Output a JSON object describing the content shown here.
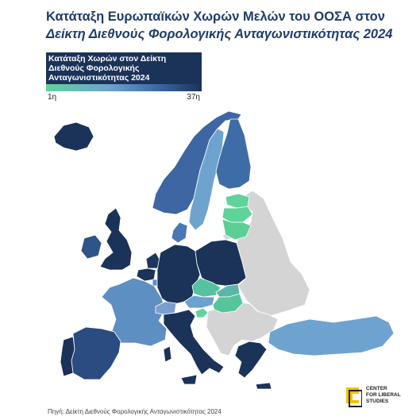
{
  "title": {
    "line1": "Κατάταξη Ευρωπαϊκών Χωρών Μελών του ΟΟΣΑ στον",
    "line2": "Δείκτη Διεθνούς Φορολογικής Ανταγωνιστικότητας 2024"
  },
  "legend": {
    "title": "Κατάταξη Χωρών στον Δείκτη Διεθνούς Φορολογικής Ανταγωνιστικότητας 2024",
    "min_label": "1η",
    "max_label": "37η",
    "color_min": "#5fd39a",
    "color_max": "#1b3358"
  },
  "colors": {
    "no_data": "#d4d4d4",
    "sea": "#ffffff",
    "border": "#ffffff",
    "title": "#1f3c6b",
    "logo_yellow": "#f2c300"
  },
  "countries": [
    {
      "name": "Iceland",
      "color": "#1b3358"
    },
    {
      "name": "Norway",
      "color": "#3d66a3"
    },
    {
      "name": "Sweden",
      "color": "#6fa3cf"
    },
    {
      "name": "Finland",
      "color": "#3e6ca6"
    },
    {
      "name": "Estonia",
      "color": "#5fd39a"
    },
    {
      "name": "Latvia",
      "color": "#5fd39a"
    },
    {
      "name": "Lithuania",
      "color": "#5ccf95"
    },
    {
      "name": "Denmark",
      "color": "#4a78b3"
    },
    {
      "name": "United Kingdom",
      "color": "#1b3358"
    },
    {
      "name": "Ireland",
      "color": "#2f5487"
    },
    {
      "name": "Netherlands",
      "color": "#1d365f"
    },
    {
      "name": "Belgium",
      "color": "#1b3358"
    },
    {
      "name": "Luxembourg",
      "color": "#5e8fc3"
    },
    {
      "name": "France",
      "color": "#1b3358"
    },
    {
      "name": "Germany",
      "color": "#5e8fc3"
    },
    {
      "name": "Poland",
      "color": "#1b3358"
    },
    {
      "name": "Czechia",
      "color": "#56c2a0"
    },
    {
      "name": "Slovakia",
      "color": "#5ab7a8"
    },
    {
      "name": "Austria",
      "color": "#6ca2cf"
    },
    {
      "name": "Hungary",
      "color": "#55c69c"
    },
    {
      "name": "Slovenia",
      "color": "#7a9fcc"
    },
    {
      "name": "Switzerland",
      "color": "#5fd39a"
    },
    {
      "name": "Spain",
      "color": "#2a4c80"
    },
    {
      "name": "Portugal",
      "color": "#1b3358"
    },
    {
      "name": "Italy",
      "color": "#1b3358"
    },
    {
      "name": "Greece",
      "color": "#1b3358"
    },
    {
      "name": "Turkey",
      "color": "#6fa3cf"
    }
  ],
  "source": "Πηγή: Δείκτη Διεθνούς Φορολογικής Ανταγωνιστικότητας 2024",
  "logo": {
    "text": "CENTER\nFOR LIBERAL\nSTUDIES",
    "icon": "clos-logo-icon"
  }
}
